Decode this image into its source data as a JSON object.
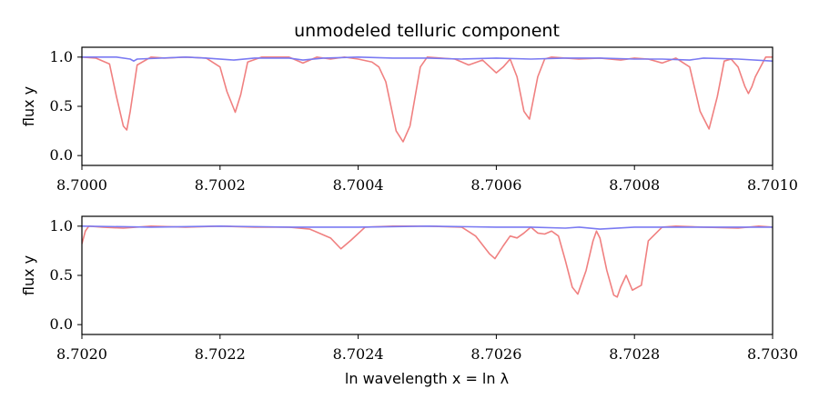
{
  "chart_data": [
    {
      "type": "line",
      "title": "unmodeled telluric component",
      "ylabel": "flux y",
      "xlabel": "",
      "xlim": [
        8.7,
        8.701
      ],
      "ylim": [
        -0.1,
        1.1
      ],
      "xticks": [
        8.7,
        8.7002,
        8.7004,
        8.7006,
        8.7008,
        8.701
      ],
      "xtick_labels": [
        "8.7000",
        "8.7002",
        "8.7004",
        "8.7006",
        "8.7008",
        "8.7010"
      ],
      "yticks": [
        0.0,
        0.5,
        1.0
      ],
      "ytick_labels": [
        "0.0",
        "0.5",
        "1.0"
      ],
      "series": [
        {
          "color": "#f08080",
          "x": [
            8.7,
            8.70002,
            8.70004,
            8.70005,
            8.70006,
            8.700065,
            8.70007,
            8.70008,
            8.7001,
            8.70012,
            8.70015,
            8.70018,
            8.7002,
            8.70021,
            8.700222,
            8.70023,
            8.70024,
            8.70026,
            8.7003,
            8.70032,
            8.70034,
            8.70036,
            8.70038,
            8.7004,
            8.70042,
            8.70043,
            8.70044,
            8.700455,
            8.700465,
            8.700475,
            8.70049,
            8.7005,
            8.70052,
            8.70054,
            8.70056,
            8.70058,
            8.7006,
            8.70061,
            8.70062,
            8.70063,
            8.70064,
            8.700648,
            8.70066,
            8.70067,
            8.70068,
            8.7007,
            8.70072,
            8.70075,
            8.70078,
            8.7008,
            8.70082,
            8.70084,
            8.70086,
            8.70088,
            8.700895,
            8.700908,
            8.70092,
            8.70093,
            8.70094,
            8.70095,
            8.70096,
            8.700965,
            8.70097,
            8.700975,
            8.70099,
            8.701
          ],
          "y": [
            1.0,
            0.99,
            0.93,
            0.6,
            0.3,
            0.26,
            0.45,
            0.92,
            1.0,
            0.99,
            1.0,
            0.99,
            0.9,
            0.65,
            0.44,
            0.62,
            0.95,
            1.0,
            1.0,
            0.94,
            1.0,
            0.98,
            1.0,
            0.98,
            0.95,
            0.9,
            0.75,
            0.25,
            0.14,
            0.3,
            0.9,
            1.0,
            0.99,
            0.98,
            0.92,
            0.97,
            0.84,
            0.9,
            0.98,
            0.8,
            0.45,
            0.37,
            0.8,
            0.98,
            1.0,
            0.99,
            0.98,
            0.99,
            0.97,
            0.99,
            0.98,
            0.94,
            0.99,
            0.9,
            0.45,
            0.27,
            0.6,
            0.96,
            0.98,
            0.9,
            0.7,
            0.63,
            0.7,
            0.8,
            1.0,
            1.0
          ]
        },
        {
          "color": "#7a7af2",
          "x": [
            8.7,
            8.70005,
            8.70007,
            8.700075,
            8.70008,
            8.70015,
            8.70018,
            8.70022,
            8.70025,
            8.7003,
            8.70032,
            8.70035,
            8.7004,
            8.70045,
            8.7005,
            8.70055,
            8.7006,
            8.70065,
            8.7007,
            8.70075,
            8.7008,
            8.70084,
            8.70088,
            8.7009,
            8.70095,
            8.701
          ],
          "y": [
            1.0,
            1.0,
            0.98,
            0.96,
            0.98,
            1.0,
            0.99,
            0.97,
            0.99,
            0.99,
            0.97,
            0.99,
            1.0,
            0.99,
            0.99,
            0.98,
            0.99,
            0.98,
            0.99,
            0.99,
            0.98,
            0.98,
            0.97,
            0.99,
            0.98,
            0.96
          ]
        }
      ]
    },
    {
      "type": "line",
      "title": "",
      "ylabel": "flux y",
      "xlabel": "ln wavelength x = ln λ",
      "xlim": [
        8.702,
        8.703
      ],
      "ylim": [
        -0.1,
        1.1
      ],
      "xticks": [
        8.702,
        8.7022,
        8.7024,
        8.7026,
        8.7028,
        8.703
      ],
      "xtick_labels": [
        "8.7020",
        "8.7022",
        "8.7024",
        "8.7026",
        "8.7028",
        "8.7030"
      ],
      "yticks": [
        0.0,
        0.5,
        1.0
      ],
      "ytick_labels": [
        "0.0",
        "0.5",
        "1.0"
      ],
      "series": [
        {
          "color": "#f08080",
          "x": [
            8.702,
            8.702005,
            8.70201,
            8.70203,
            8.70206,
            8.7021,
            8.70215,
            8.7022,
            8.70225,
            8.7023,
            8.70233,
            8.70236,
            8.702375,
            8.70239,
            8.70241,
            8.70245,
            8.7025,
            8.70255,
            8.70257,
            8.70259,
            8.702598,
            8.70261,
            8.70262,
            8.70263,
            8.70264,
            8.70265,
            8.70266,
            8.70267,
            8.70268,
            8.70269,
            8.7027,
            8.70271,
            8.702718,
            8.70273,
            8.70274,
            8.702745,
            8.70275,
            8.70276,
            8.70277,
            8.702775,
            8.70278,
            8.702788,
            8.702797,
            8.70281,
            8.70282,
            8.70284,
            8.70286,
            8.7029,
            8.70295,
            8.70298,
            8.703
          ],
          "y": [
            0.82,
            0.95,
            1.0,
            0.99,
            0.98,
            1.0,
            0.99,
            1.0,
            0.99,
            0.99,
            0.97,
            0.88,
            0.77,
            0.86,
            0.99,
            1.0,
            1.0,
            0.99,
            0.9,
            0.72,
            0.67,
            0.8,
            0.9,
            0.88,
            0.93,
            0.99,
            0.93,
            0.92,
            0.95,
            0.9,
            0.65,
            0.38,
            0.31,
            0.55,
            0.85,
            0.95,
            0.88,
            0.55,
            0.3,
            0.28,
            0.38,
            0.5,
            0.35,
            0.4,
            0.85,
            0.99,
            1.0,
            0.99,
            0.98,
            1.0,
            0.99
          ]
        },
        {
          "color": "#7a7af2",
          "x": [
            8.702,
            8.7021,
            8.7022,
            8.7023,
            8.7024,
            8.7025,
            8.7026,
            8.70265,
            8.7027,
            8.70272,
            8.70275,
            8.7028,
            8.7029,
            8.703
          ],
          "y": [
            1.0,
            0.99,
            1.0,
            0.99,
            0.99,
            1.0,
            0.99,
            0.99,
            0.98,
            0.99,
            0.97,
            0.99,
            0.99,
            0.99
          ]
        }
      ]
    }
  ]
}
